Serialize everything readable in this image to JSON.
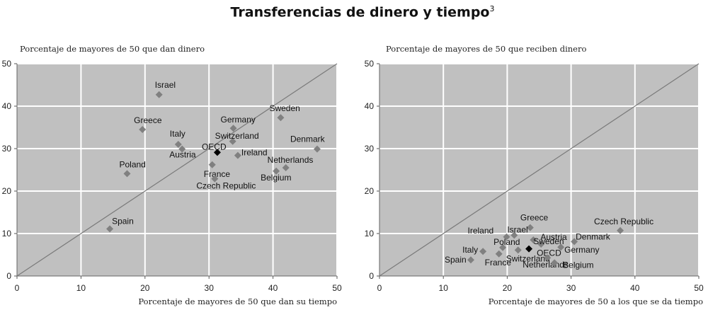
{
  "title": "Transferencias de dinero y tiempo",
  "footnote": "3",
  "chart_data": [
    {
      "type": "scatter",
      "ylabel": "Porcentaje de mayores de 50 que dan dinero",
      "xlabel": "Porcentaje de mayores de 50 que dan su tiempo",
      "xlim": [
        0,
        50
      ],
      "ylim": [
        0,
        50
      ],
      "xticks": [
        "0",
        "10",
        "20",
        "30",
        "40",
        "50"
      ],
      "yticks": [
        "0",
        "10",
        "20",
        "30",
        "40",
        "50"
      ],
      "grid": true,
      "diagonal": true,
      "marker_color": "#808080",
      "highlight_color": "#000000",
      "points": [
        {
          "label": "Israel",
          "x": 22.2,
          "y": 42.7
        },
        {
          "label": "Sweden",
          "x": 41.2,
          "y": 37.3
        },
        {
          "label": "Greece",
          "x": 19.6,
          "y": 34.5
        },
        {
          "label": "Germany",
          "x": 33.8,
          "y": 34.8
        },
        {
          "label": "Switzerland",
          "x": 33.7,
          "y": 31.7
        },
        {
          "label": "Italy",
          "x": 25.2,
          "y": 31.0
        },
        {
          "label": "Austria",
          "x": 25.8,
          "y": 29.9
        },
        {
          "label": "OECD",
          "x": 31.3,
          "y": 29.1,
          "highlight": true
        },
        {
          "label": "Denmark",
          "x": 46.9,
          "y": 29.9
        },
        {
          "label": "Ireland",
          "x": 34.5,
          "y": 28.4
        },
        {
          "label": "France",
          "x": 30.5,
          "y": 26.2
        },
        {
          "label": "Netherlands",
          "x": 42.0,
          "y": 25.5
        },
        {
          "label": "Belgium",
          "x": 40.5,
          "y": 24.7
        },
        {
          "label": "Poland",
          "x": 17.2,
          "y": 24.1
        },
        {
          "label": "Czech Republic",
          "x": 30.9,
          "y": 22.9
        },
        {
          "label": "Spain",
          "x": 14.5,
          "y": 11.1
        }
      ]
    },
    {
      "type": "scatter",
      "ylabel": "Porcentaje de mayores de 50 que reciben dinero",
      "xlabel": "Porcentaje de mayores de 50 a los que se da tiempo",
      "xlim": [
        0,
        50
      ],
      "ylim": [
        0,
        50
      ],
      "xticks": [
        "0",
        "10",
        "20",
        "30",
        "40",
        "50"
      ],
      "yticks": [
        "0",
        "10",
        "20",
        "30",
        "40",
        "50"
      ],
      "grid": true,
      "diagonal": true,
      "marker_color": "#808080",
      "highlight_color": "#000000",
      "points": [
        {
          "label": "Greece",
          "x": 23.6,
          "y": 11.4
        },
        {
          "label": "Czech Republic",
          "x": 37.7,
          "y": 10.7
        },
        {
          "label": "Israel",
          "x": 21.1,
          "y": 9.6
        },
        {
          "label": "Ireland",
          "x": 19.9,
          "y": 9.2
        },
        {
          "label": "Austria",
          "x": 24.1,
          "y": 8.5
        },
        {
          "label": "Denmark",
          "x": 30.5,
          "y": 8.1
        },
        {
          "label": "Sweden",
          "x": 25.3,
          "y": 7.5
        },
        {
          "label": "Poland",
          "x": 19.3,
          "y": 6.7
        },
        {
          "label": "Germany",
          "x": 28.4,
          "y": 6.8
        },
        {
          "label": "OECD",
          "x": 23.4,
          "y": 6.4,
          "highlight": true
        },
        {
          "label": "Italy",
          "x": 16.2,
          "y": 5.8
        },
        {
          "label": "Switzerland",
          "x": 21.7,
          "y": 6.1
        },
        {
          "label": "France",
          "x": 18.7,
          "y": 5.2
        },
        {
          "label": "Netherlands",
          "x": 26.3,
          "y": 4.3
        },
        {
          "label": "Spain",
          "x": 14.3,
          "y": 3.8
        },
        {
          "label": "Belgium",
          "x": 27.4,
          "y": 3.1
        }
      ]
    }
  ]
}
